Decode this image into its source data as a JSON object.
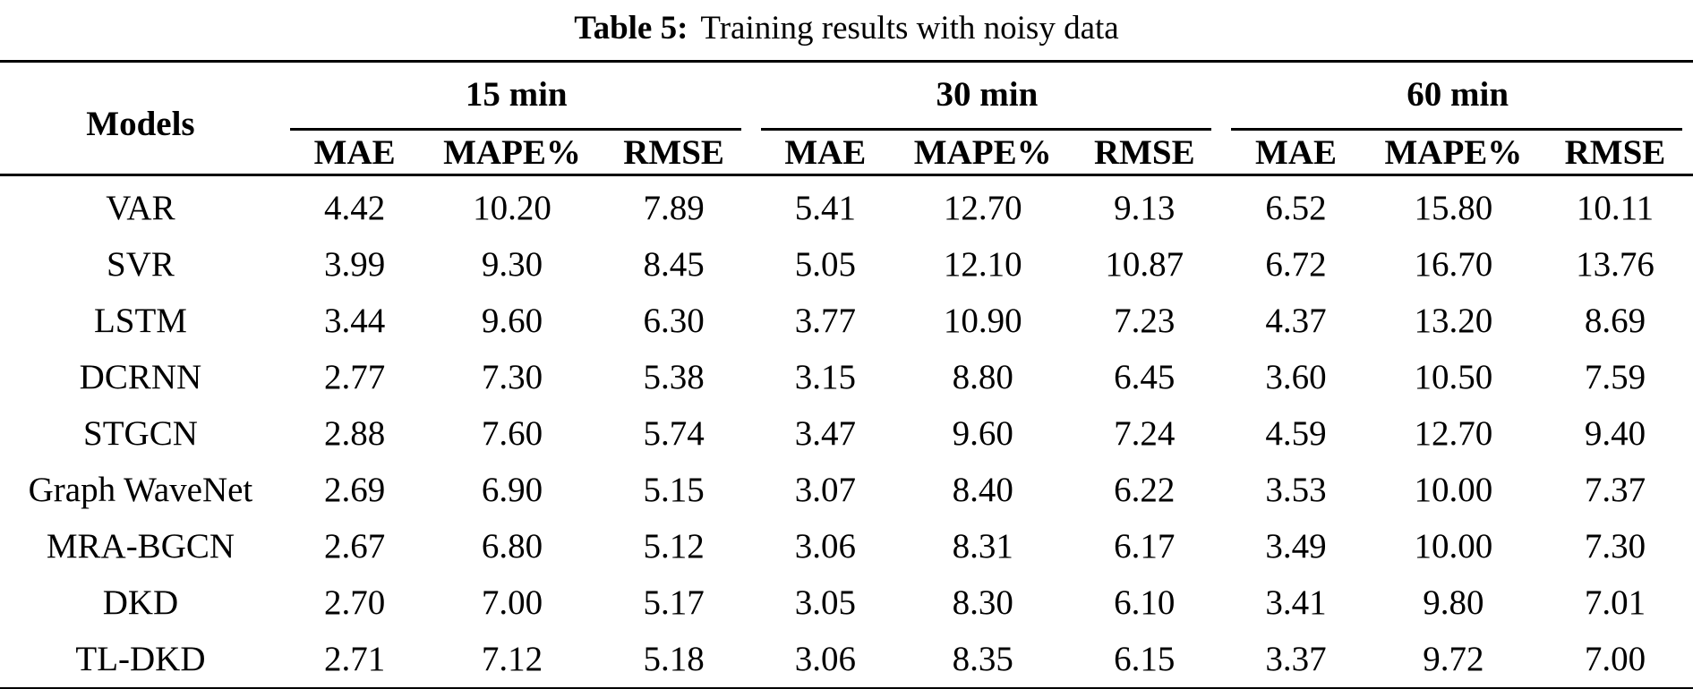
{
  "caption": {
    "label": "Table 5:",
    "text": "Training results with noisy data"
  },
  "table": {
    "models_header": "Models",
    "groups": [
      {
        "label": "15 min"
      },
      {
        "label": "30 min"
      },
      {
        "label": "60 min"
      }
    ],
    "metrics": [
      "MAE",
      "MAPE%",
      "RMSE"
    ],
    "rows": [
      {
        "model": "VAR",
        "values": [
          "4.42",
          "10.20",
          "7.89",
          "5.41",
          "12.70",
          "9.13",
          "6.52",
          "15.80",
          "10.11"
        ]
      },
      {
        "model": "SVR",
        "values": [
          "3.99",
          "9.30",
          "8.45",
          "5.05",
          "12.10",
          "10.87",
          "6.72",
          "16.70",
          "13.76"
        ]
      },
      {
        "model": "LSTM",
        "values": [
          "3.44",
          "9.60",
          "6.30",
          "3.77",
          "10.90",
          "7.23",
          "4.37",
          "13.20",
          "8.69"
        ]
      },
      {
        "model": "DCRNN",
        "values": [
          "2.77",
          "7.30",
          "5.38",
          "3.15",
          "8.80",
          "6.45",
          "3.60",
          "10.50",
          "7.59"
        ]
      },
      {
        "model": "STGCN",
        "values": [
          "2.88",
          "7.60",
          "5.74",
          "3.47",
          "9.60",
          "7.24",
          "4.59",
          "12.70",
          "9.40"
        ]
      },
      {
        "model": "Graph WaveNet",
        "values": [
          "2.69",
          "6.90",
          "5.15",
          "3.07",
          "8.40",
          "6.22",
          "3.53",
          "10.00",
          "7.37"
        ]
      },
      {
        "model": "MRA-BGCN",
        "values": [
          "2.67",
          "6.80",
          "5.12",
          "3.06",
          "8.31",
          "6.17",
          "3.49",
          "10.00",
          "7.30"
        ]
      },
      {
        "model": "DKD",
        "values": [
          "2.70",
          "7.00",
          "5.17",
          "3.05",
          "8.30",
          "6.10",
          "3.41",
          "9.80",
          "7.01"
        ]
      },
      {
        "model": "TL-DKD",
        "values": [
          "2.71",
          "7.12",
          "5.18",
          "3.06",
          "8.35",
          "6.15",
          "3.37",
          "9.72",
          "7.00"
        ]
      }
    ],
    "text_color": "#000000",
    "background_color": "#ffffff"
  }
}
